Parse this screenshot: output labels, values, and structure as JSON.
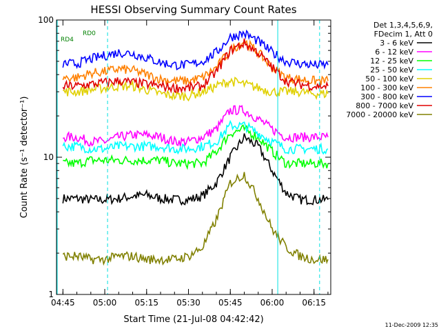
{
  "chart_data": {
    "type": "line",
    "title": "HESSI Observing Summary Count Rates",
    "xlabel": "Start Time (21-Jul-08 04:42:42)",
    "ylabel": "Count Rate (s⁻¹ detector⁻¹)",
    "y_scale": "log",
    "ylim": [
      1,
      100
    ],
    "xlim": [
      "04:42:42",
      "06:21:00"
    ],
    "x_ticks": [
      "04:45",
      "05:00",
      "05:15",
      "05:30",
      "05:45",
      "06:00",
      "06:15"
    ],
    "y_ticks": [
      "1",
      "10",
      "100"
    ],
    "grid": false,
    "legend_position": "right",
    "legend_header": [
      "Det 1,3,4,5,6,9,",
      "FDecim 1, Att 0"
    ],
    "footer_date": "11-Dec-2009 12:35",
    "annotations": [
      "RD0",
      "RD4"
    ],
    "x": [
      "04:45",
      "04:50",
      "04:55",
      "05:00",
      "05:05",
      "05:10",
      "05:15",
      "05:20",
      "05:25",
      "05:30",
      "05:35",
      "05:40",
      "05:45",
      "05:50",
      "05:55",
      "06:00",
      "06:05",
      "06:10",
      "06:15",
      "06:20"
    ],
    "series": [
      {
        "name": "3 - 6 keV",
        "color": "#000000",
        "values": [
          5.0,
          5.0,
          4.9,
          4.9,
          5.0,
          5.2,
          5.3,
          5.0,
          4.9,
          4.9,
          5.2,
          6.5,
          10.0,
          14.0,
          12.0,
          8.0,
          5.5,
          4.9,
          4.9,
          4.9
        ]
      },
      {
        "name": "6 - 12 keV",
        "color": "#ff00ff",
        "values": [
          14.0,
          14.0,
          13.0,
          13.0,
          14.0,
          14.5,
          14.5,
          14.0,
          13.0,
          13.0,
          14.0,
          16.0,
          22.0,
          22.0,
          19.0,
          16.0,
          14.0,
          14.0,
          14.0,
          14.0
        ]
      },
      {
        "name": "12 - 25 keV",
        "color": "#00ff00",
        "values": [
          9.0,
          9.0,
          9.5,
          9.5,
          9.5,
          9.5,
          9.5,
          9.5,
          9.0,
          9.0,
          9.0,
          11.0,
          15.0,
          16.0,
          14.0,
          11.0,
          9.0,
          9.0,
          9.0,
          9.0
        ]
      },
      {
        "name": "25 - 50 keV",
        "color": "#00ffff",
        "values": [
          12.0,
          12.0,
          11.5,
          11.5,
          12.0,
          12.0,
          12.0,
          12.0,
          11.5,
          11.5,
          12.0,
          13.0,
          17.0,
          17.0,
          15.0,
          13.0,
          11.5,
          11.5,
          11.5,
          11.5
        ]
      },
      {
        "name": "50 - 100 keV",
        "color": "#e0d000",
        "values": [
          30.0,
          30.0,
          31.0,
          32.0,
          33.0,
          33.0,
          31.0,
          29.0,
          28.0,
          28.0,
          30.0,
          33.0,
          36.0,
          34.0,
          32.0,
          30.0,
          30.0,
          30.0,
          29.0,
          29.0
        ]
      },
      {
        "name": "100 - 300 keV",
        "color": "#ff8000",
        "values": [
          38.0,
          38.0,
          41.0,
          42.0,
          44.0,
          43.0,
          40.0,
          37.0,
          36.0,
          36.0,
          38.0,
          45.0,
          60.0,
          70.0,
          58.0,
          45.0,
          38.0,
          37.0,
          36.0,
          36.0
        ]
      },
      {
        "name": "300 - 800 keV",
        "color": "#0000ff",
        "values": [
          48.0,
          48.0,
          52.0,
          55.0,
          58.0,
          57.0,
          53.0,
          49.0,
          47.0,
          47.0,
          50.0,
          58.0,
          75.0,
          80.0,
          70.0,
          58.0,
          50.0,
          48.0,
          47.0,
          47.0
        ]
      },
      {
        "name": "800 - 7000 keV",
        "color": "#e00000",
        "values": [
          33.0,
          33.0,
          34.0,
          35.0,
          36.0,
          35.0,
          34.0,
          33.0,
          32.0,
          32.0,
          33.0,
          42.0,
          60.0,
          68.0,
          58.0,
          45.0,
          36.0,
          34.0,
          33.0,
          33.0
        ]
      },
      {
        "name": "7000 - 20000 keV",
        "color": "#808000",
        "values": [
          1.9,
          1.9,
          1.8,
          1.8,
          1.9,
          1.9,
          1.8,
          1.8,
          1.8,
          1.9,
          2.2,
          3.5,
          6.5,
          7.5,
          5.0,
          3.0,
          2.2,
          1.9,
          1.8,
          1.8
        ]
      }
    ]
  }
}
